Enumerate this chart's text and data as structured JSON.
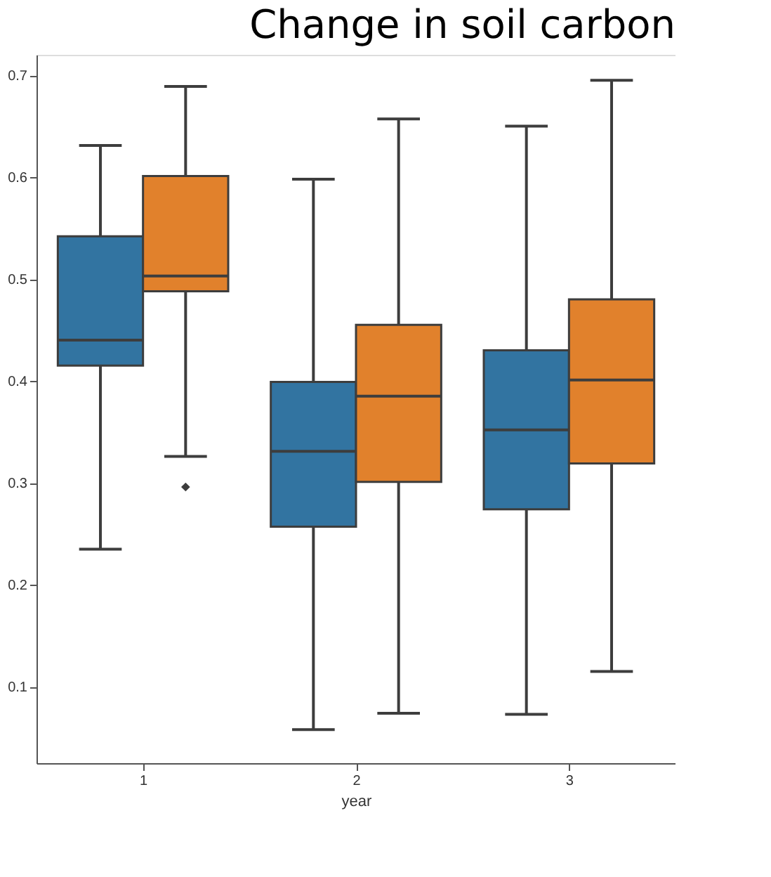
{
  "chart_data": {
    "type": "box",
    "title": "Change in soil carbon",
    "xlabel": "year",
    "categories": [
      "1",
      "2",
      "3"
    ],
    "ylim": [
      0.025,
      0.72
    ],
    "yticks": [
      0.1,
      0.2,
      0.3,
      0.4,
      0.5,
      0.6,
      0.7
    ],
    "grid": false,
    "legend": false,
    "series": [
      {
        "color": "#3274a1",
        "boxes": [
          {
            "low": 0.235,
            "q1": 0.415,
            "median": 0.44,
            "q3": 0.542,
            "high": 0.631
          },
          {
            "low": 0.058,
            "q1": 0.257,
            "median": 0.331,
            "q3": 0.399,
            "high": 0.598
          },
          {
            "low": 0.073,
            "q1": 0.274,
            "median": 0.352,
            "q3": 0.43,
            "high": 0.65
          }
        ]
      },
      {
        "color": "#e1812c",
        "boxes": [
          {
            "low": 0.326,
            "q1": 0.488,
            "median": 0.503,
            "q3": 0.601,
            "high": 0.689,
            "outliers": [
              0.296
            ]
          },
          {
            "low": 0.074,
            "q1": 0.301,
            "median": 0.385,
            "q3": 0.455,
            "high": 0.657
          },
          {
            "low": 0.115,
            "q1": 0.319,
            "median": 0.401,
            "q3": 0.48,
            "high": 0.695
          }
        ]
      }
    ]
  }
}
